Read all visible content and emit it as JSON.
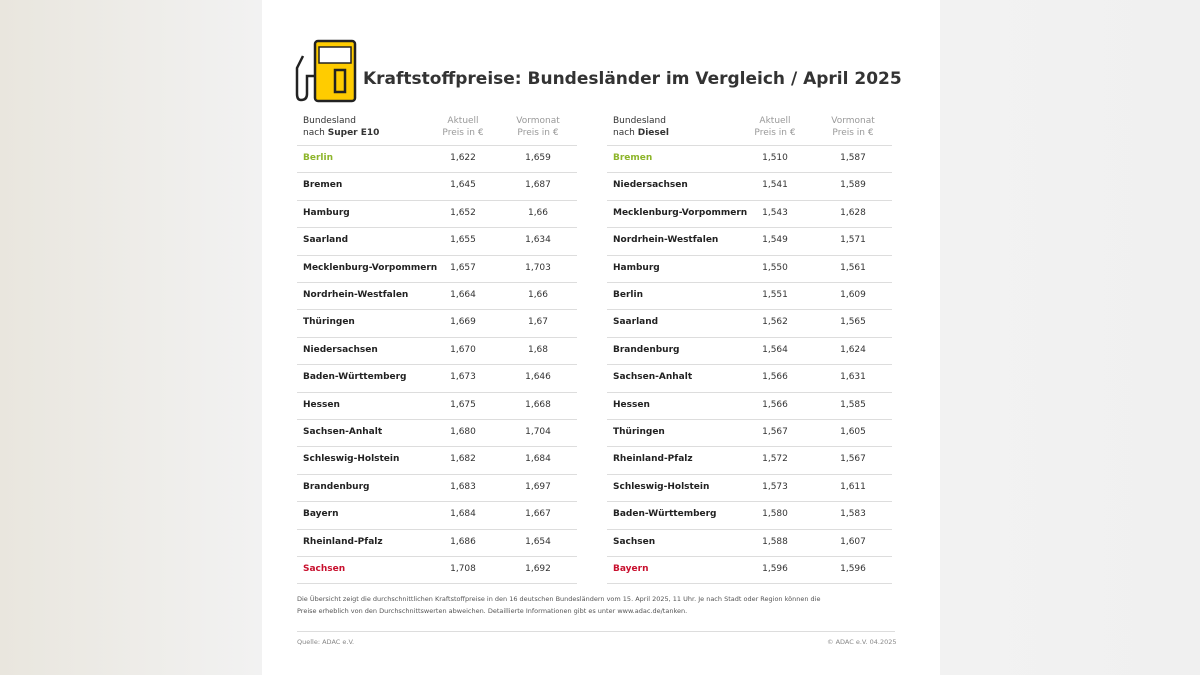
{
  "header": {
    "title": "Kraftstoffpreise: Bundesländer im Vergleich / April 2025"
  },
  "tables": [
    {
      "head": {
        "name_line1": "Bundesland",
        "name_prefix": "nach",
        "name_bold": "Super E10",
        "col1_line1": "Aktuell",
        "col1_line2": "Preis in €",
        "col2_line1": "Vormonat",
        "col2_line2": "Preis in €"
      },
      "rows": [
        [
          "Berlin",
          "1,622",
          "1,659"
        ],
        [
          "Bremen",
          "1,645",
          "1,687"
        ],
        [
          "Hamburg",
          "1,652",
          "1,66"
        ],
        [
          "Saarland",
          "1,655",
          "1,634"
        ],
        [
          "Mecklenburg-Vorpommern",
          "1,657",
          "1,703"
        ],
        [
          "Nordrhein-Westfalen",
          "1,664",
          "1,66"
        ],
        [
          "Thüringen",
          "1,669",
          "1,67"
        ],
        [
          "Niedersachsen",
          "1,670",
          "1,68"
        ],
        [
          "Baden-Württemberg",
          "1,673",
          "1,646"
        ],
        [
          "Hessen",
          "1,675",
          "1,668"
        ],
        [
          "Sachsen-Anhalt",
          "1,680",
          "1,704"
        ],
        [
          "Schleswig-Holstein",
          "1,682",
          "1,684"
        ],
        [
          "Brandenburg",
          "1,683",
          "1,697"
        ],
        [
          "Bayern",
          "1,684",
          "1,667"
        ],
        [
          "Rheinland-Pfalz",
          "1,686",
          "1,654"
        ],
        [
          "Sachsen",
          "1,708",
          "1,692"
        ]
      ]
    },
    {
      "head": {
        "name_line1": "Bundesland",
        "name_prefix": "nach",
        "name_bold": "Diesel",
        "col1_line1": "Aktuell",
        "col1_line2": "Preis in €",
        "col2_line1": "Vormonat",
        "col2_line2": "Preis in €"
      },
      "rows": [
        [
          "Bremen",
          "1,510",
          "1,587"
        ],
        [
          "Niedersachsen",
          "1,541",
          "1,589"
        ],
        [
          "Mecklenburg-Vorpommern",
          "1,543",
          "1,628"
        ],
        [
          "Nordrhein-Westfalen",
          "1,549",
          "1,571"
        ],
        [
          "Hamburg",
          "1,550",
          "1,561"
        ],
        [
          "Berlin",
          "1,551",
          "1,609"
        ],
        [
          "Saarland",
          "1,562",
          "1,565"
        ],
        [
          "Brandenburg",
          "1,564",
          "1,624"
        ],
        [
          "Sachsen-Anhalt",
          "1,566",
          "1,631"
        ],
        [
          "Hessen",
          "1,566",
          "1,585"
        ],
        [
          "Thüringen",
          "1,567",
          "1,605"
        ],
        [
          "Rheinland-Pfalz",
          "1,572",
          "1,567"
        ],
        [
          "Schleswig-Holstein",
          "1,573",
          "1,611"
        ],
        [
          "Baden-Württemberg",
          "1,580",
          "1,583"
        ],
        [
          "Sachsen",
          "1,588",
          "1,607"
        ],
        [
          "Bayern",
          "1,596",
          "1,596"
        ]
      ]
    }
  ],
  "footnote": [
    "Die Übersicht zeigt die durchschnittlichen Kraftstoffpreise in den 16 deutschen Bundesländern vom 15. April 2025, 11 Uhr. Je nach Stadt oder Region können die",
    "Preise erheblich von den Durchschnittswerten abweichen. Detaillierte Informationen gibt es unter www.adac.de/tanken."
  ],
  "source": "Quelle: ADAC e.V.",
  "copyright": "© ADAC e.V. 04.2025"
}
